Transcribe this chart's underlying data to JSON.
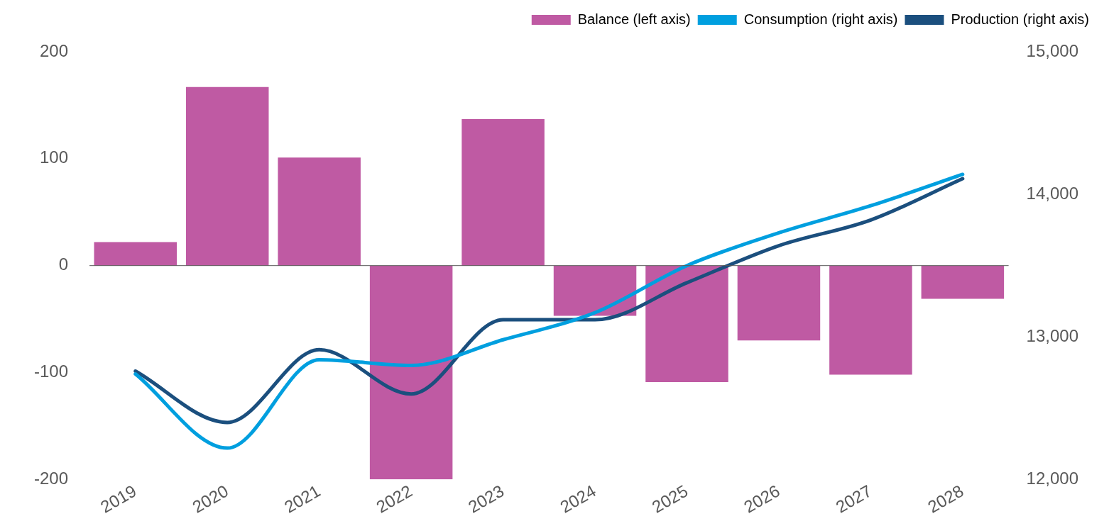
{
  "chart_data": {
    "type": "bar",
    "categories": [
      "2019",
      "2020",
      "2021",
      "2022",
      "2023",
      "2024",
      "2025",
      "2026",
      "2027",
      "2028"
    ],
    "series": [
      {
        "name": "Balance (left axis)",
        "color": "#bf5aa3",
        "values": [
          22,
          167,
          101,
          -200,
          137,
          -47,
          -109,
          -70,
          -102,
          -31
        ]
      },
      {
        "name": "Consumption (right axis)",
        "type": "line",
        "axis": "y2",
        "color": "#009fdf",
        "values": [
          12740,
          12220,
          12840,
          12800,
          12980,
          13170,
          13500,
          13730,
          13920,
          14140
        ]
      },
      {
        "name": "Production (right axis)",
        "type": "line",
        "axis": "y2",
        "color": "#1b4f7e",
        "values": [
          12760,
          12400,
          12910,
          12600,
          13120,
          13120,
          13380,
          13640,
          13820,
          14110
        ]
      }
    ],
    "ylim": [
      -200,
      200
    ],
    "yticks": [
      -200,
      -100,
      0,
      100,
      200
    ],
    "y2lim": [
      12000,
      15000
    ],
    "y2ticks": [
      {
        "value": 12000,
        "label": "12,000"
      },
      {
        "value": 13000,
        "label": "13,000"
      },
      {
        "value": 14000,
        "label": "14,000"
      },
      {
        "value": 15000,
        "label": "15,000"
      }
    ],
    "ref_lines": [
      {
        "axis": "y",
        "value": 0,
        "color": "#595959"
      }
    ],
    "grid": false,
    "legend": "top right",
    "marker": "none"
  }
}
